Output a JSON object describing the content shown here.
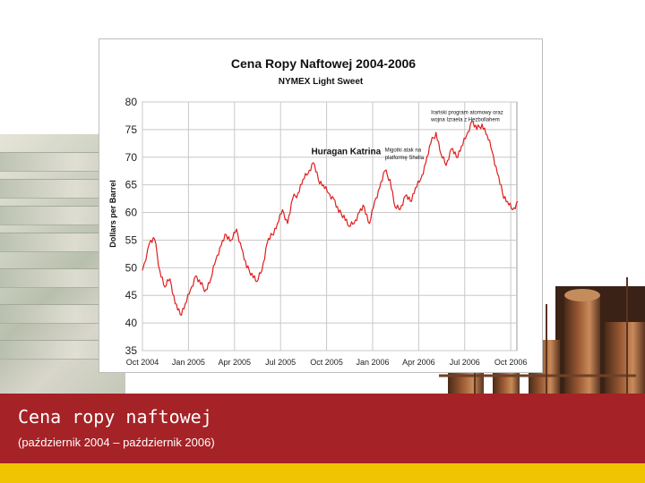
{
  "slide": {
    "caption_title": "Cena ropy naftowej",
    "caption_subtitle": "(październik 2004 – październik 2006)"
  },
  "colors": {
    "banner": "#a52226",
    "stripe": "#f0c400",
    "line": "#e01e1e"
  },
  "chart_data": {
    "type": "line",
    "title": "Cena Ropy Naftowej 2004-2006",
    "subtitle": "NYMEX Light Sweet",
    "xlabel": "",
    "ylabel": "Dollars per Barrel",
    "ylim": [
      35,
      80
    ],
    "yticks": [
      "35",
      "40",
      "45",
      "50",
      "55",
      "60",
      "65",
      "70",
      "75",
      "80"
    ],
    "xticks": [
      "Oct 2004",
      "Jan 2005",
      "Apr 2005",
      "Jul 2005",
      "Oct 2005",
      "Jan 2006",
      "Apr 2006",
      "Jul 2006",
      "Oct 2006"
    ],
    "grid": true,
    "annotations": [
      {
        "text": "Huragan Katrina",
        "month": 11.0,
        "value": 70.5
      },
      {
        "text": "Migotki atak na",
        "month": 15.8,
        "value": 71.0
      },
      {
        "text": "platformę Shella",
        "month": 15.8,
        "value": 69.6
      },
      {
        "text": "Irański program atomowy oraz",
        "month": 18.8,
        "value": 77.8
      },
      {
        "text": "wojna Izraela z Hezbollahem",
        "month": 18.8,
        "value": 76.5
      }
    ],
    "series": [
      {
        "x": [
          "2004-10-01",
          "2004-10-15",
          "2004-10-25",
          "2004-11-05",
          "2004-11-15",
          "2004-11-25",
          "2004-12-05",
          "2004-12-15",
          "2004-12-25",
          "2005-01-05",
          "2005-01-15",
          "2005-01-25",
          "2005-02-05",
          "2005-02-15",
          "2005-02-25",
          "2005-03-05",
          "2005-03-15",
          "2005-03-25",
          "2005-04-05",
          "2005-04-15",
          "2005-04-25",
          "2005-05-05",
          "2005-05-15",
          "2005-05-25",
          "2005-06-05",
          "2005-06-15",
          "2005-06-25",
          "2005-07-05",
          "2005-07-15",
          "2005-07-25",
          "2005-08-05",
          "2005-08-15",
          "2005-08-25",
          "2005-09-05",
          "2005-09-15",
          "2005-09-25",
          "2005-10-05",
          "2005-10-15",
          "2005-10-25",
          "2005-11-05",
          "2005-11-15",
          "2005-11-25",
          "2005-12-05",
          "2005-12-15",
          "2005-12-25",
          "2006-01-05",
          "2006-01-15",
          "2006-01-25",
          "2006-02-05",
          "2006-02-15",
          "2006-02-25",
          "2006-03-05",
          "2006-03-15",
          "2006-03-25",
          "2006-04-05",
          "2006-04-15",
          "2006-04-25",
          "2006-05-05",
          "2006-05-15",
          "2006-05-25",
          "2006-06-05",
          "2006-06-15",
          "2006-06-25",
          "2006-07-05",
          "2006-07-15",
          "2006-07-25",
          "2006-08-05",
          "2006-08-15",
          "2006-08-25",
          "2006-09-05",
          "2006-09-15",
          "2006-09-25",
          "2006-10-05",
          "2006-10-15"
        ],
        "values": [
          49.5,
          54.5,
          55.2,
          49.5,
          46.5,
          48.0,
          43.5,
          41.5,
          43.5,
          46.0,
          48.5,
          47.0,
          46.0,
          48.0,
          51.5,
          54.0,
          56.0,
          55.0,
          57.0,
          53.5,
          50.0,
          49.0,
          47.5,
          49.5,
          54.5,
          56.0,
          58.0,
          60.5,
          58.0,
          62.5,
          63.5,
          66.0,
          67.0,
          69.0,
          66.0,
          65.0,
          63.5,
          62.5,
          60.0,
          59.5,
          57.5,
          58.0,
          60.0,
          61.0,
          58.0,
          62.0,
          64.5,
          67.5,
          66.0,
          61.0,
          60.5,
          63.0,
          62.0,
          64.5,
          66.0,
          69.0,
          72.5,
          74.5,
          70.5,
          68.5,
          71.5,
          70.0,
          72.0,
          74.0,
          76.5,
          75.0,
          76.0,
          74.0,
          71.0,
          67.0,
          63.5,
          62.0,
          60.5,
          62.0
        ]
      }
    ]
  }
}
